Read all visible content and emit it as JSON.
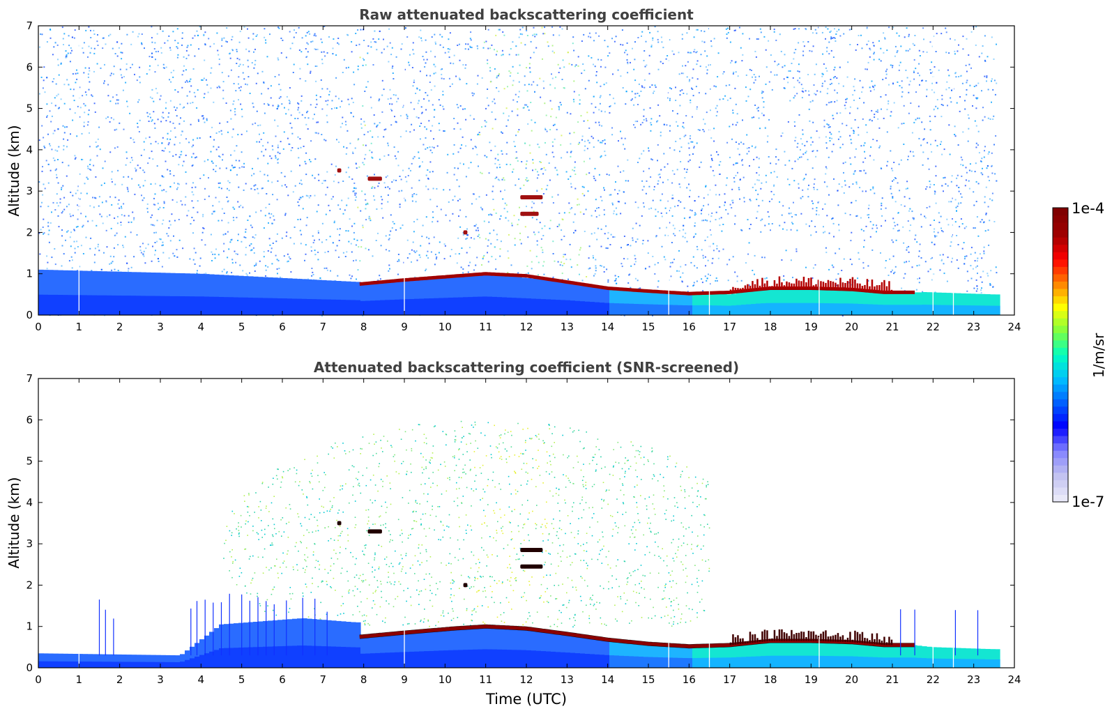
{
  "chart_data": [
    {
      "type": "heatmap",
      "title": "Raw attenuated backscattering coefficient",
      "ylabel": "Altitude (km)",
      "xlabel": "",
      "xlim": [
        0,
        24
      ],
      "ylim": [
        0,
        7
      ],
      "xticks": [
        "0",
        "1",
        "2",
        "3",
        "4",
        "5",
        "6",
        "7",
        "8",
        "9",
        "10",
        "11",
        "12",
        "13",
        "14",
        "15",
        "16",
        "17",
        "18",
        "19",
        "20",
        "21",
        "22",
        "23",
        "24"
      ],
      "yticks": [
        "0",
        "1",
        "2",
        "3",
        "4",
        "5",
        "6",
        "7"
      ],
      "data_end_hour": 23.55,
      "boundary_layer_top_km": [
        {
          "x": 0,
          "y": 1.1
        },
        {
          "x": 4,
          "y": 1.0
        },
        {
          "x": 7.9,
          "y": 0.8
        },
        {
          "x": 11,
          "y": 1.0
        },
        {
          "x": 13,
          "y": 0.8
        },
        {
          "x": 15,
          "y": 0.6
        },
        {
          "x": 17,
          "y": 0.5
        },
        {
          "x": 18.5,
          "y": 0.75
        },
        {
          "x": 20.5,
          "y": 0.6
        },
        {
          "x": 22,
          "y": 0.55
        },
        {
          "x": 23.5,
          "y": 0.5
        }
      ],
      "cloud_layer_km": [
        {
          "x": 7.9,
          "y": 0.75
        },
        {
          "x": 9,
          "y": 0.85
        },
        {
          "x": 11,
          "y": 1.0
        },
        {
          "x": 12,
          "y": 0.95
        },
        {
          "x": 13,
          "y": 0.8
        },
        {
          "x": 14,
          "y": 0.65
        },
        {
          "x": 15,
          "y": 0.58
        },
        {
          "x": 16,
          "y": 0.52
        },
        {
          "x": 17,
          "y": 0.55
        },
        {
          "x": 18,
          "y": 0.65
        },
        {
          "x": 19,
          "y": 0.65
        },
        {
          "x": 20,
          "y": 0.62
        },
        {
          "x": 20.8,
          "y": 0.55
        },
        {
          "x": 21.6,
          "y": 0.55
        }
      ],
      "elevated_features_km": [
        {
          "x0": 7.35,
          "x1": 7.45,
          "y": 3.5
        },
        {
          "x0": 8.1,
          "x1": 8.45,
          "y": 3.3
        },
        {
          "x0": 11.85,
          "x1": 12.4,
          "y": 2.85
        },
        {
          "x0": 11.85,
          "x1": 12.3,
          "y": 2.45
        },
        {
          "x0": 10.45,
          "x1": 10.55,
          "y": 2.0
        }
      ],
      "colorbar_hidden_gaps_hour": [
        1.0,
        9.0,
        15.5,
        16.5,
        19.2,
        22.0,
        22.5
      ]
    },
    {
      "type": "heatmap",
      "title": "Attenuated backscattering coefficient (SNR-screened)",
      "ylabel": "Altitude (km)",
      "xlabel": "Time (UTC)",
      "xlim": [
        0,
        24
      ],
      "ylim": [
        0,
        7
      ],
      "xticks": [
        "0",
        "1",
        "2",
        "3",
        "4",
        "5",
        "6",
        "7",
        "8",
        "9",
        "10",
        "11",
        "12",
        "13",
        "14",
        "15",
        "16",
        "17",
        "18",
        "19",
        "20",
        "21",
        "22",
        "23",
        "24"
      ],
      "yticks": [
        "0",
        "1",
        "2",
        "3",
        "4",
        "5",
        "6",
        "7"
      ],
      "data_end_hour": 23.55,
      "boundary_layer_top_km": [
        {
          "x": 0,
          "y": 0.35
        },
        {
          "x": 3.5,
          "y": 0.3
        },
        {
          "x": 4.5,
          "y": 1.05
        },
        {
          "x": 6.5,
          "y": 1.2
        },
        {
          "x": 7.8,
          "y": 1.1
        },
        {
          "x": 11,
          "y": 1.1
        },
        {
          "x": 13,
          "y": 0.9
        },
        {
          "x": 16,
          "y": 0.65
        },
        {
          "x": 17,
          "y": 0.55
        },
        {
          "x": 18.5,
          "y": 0.8
        },
        {
          "x": 20.5,
          "y": 0.65
        },
        {
          "x": 22,
          "y": 0.5
        },
        {
          "x": 23.5,
          "y": 0.45
        }
      ],
      "cloud_layer_km": [
        {
          "x": 7.9,
          "y": 0.75
        },
        {
          "x": 9,
          "y": 0.85
        },
        {
          "x": 10.2,
          "y": 0.95
        },
        {
          "x": 11,
          "y": 1.0
        },
        {
          "x": 12,
          "y": 0.95
        },
        {
          "x": 13,
          "y": 0.82
        },
        {
          "x": 14,
          "y": 0.68
        },
        {
          "x": 15,
          "y": 0.58
        },
        {
          "x": 16,
          "y": 0.52
        },
        {
          "x": 17,
          "y": 0.55
        },
        {
          "x": 18,
          "y": 0.65
        },
        {
          "x": 19,
          "y": 0.65
        },
        {
          "x": 20,
          "y": 0.62
        },
        {
          "x": 20.8,
          "y": 0.55
        },
        {
          "x": 21.6,
          "y": 0.55
        }
      ],
      "elevated_features_km": [
        {
          "x0": 7.35,
          "x1": 7.45,
          "y": 3.5
        },
        {
          "x0": 8.1,
          "x1": 8.45,
          "y": 3.3
        },
        {
          "x0": 11.85,
          "x1": 12.4,
          "y": 2.85
        },
        {
          "x0": 11.85,
          "x1": 12.4,
          "y": 2.45
        },
        {
          "x0": 10.45,
          "x1": 10.55,
          "y": 2.0
        }
      ],
      "rain_streaks_hour": [
        1.5,
        1.65,
        1.85,
        3.75,
        3.9,
        4.1,
        4.3,
        4.5,
        4.7,
        5.0,
        5.2,
        5.4,
        5.6,
        5.8,
        6.1,
        6.5,
        6.8,
        7.1,
        21.2,
        21.55,
        22.55,
        23.1
      ]
    }
  ],
  "colorbar": {
    "label": "1/m/sr",
    "max_label": "1e-4",
    "min_label": "1e-7",
    "scale": "log",
    "colormap": [
      "#e8e8f8",
      "#c0c0f0",
      "#8080ff",
      "#0000ff",
      "#0060ff",
      "#00c0ff",
      "#00ffc0",
      "#80ff40",
      "#ffff00",
      "#ff8000",
      "#ff0000",
      "#a00000",
      "#800000"
    ]
  }
}
